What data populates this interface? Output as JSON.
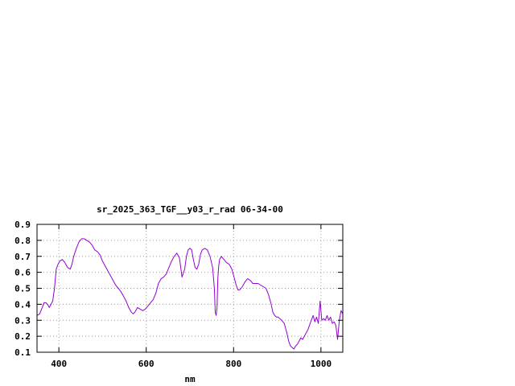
{
  "chart_data": {
    "type": "line",
    "title": "sr_2025_363_TGF__y03_r_rad 06-34-00",
    "xlabel": "nm",
    "ylabel": "",
    "xlim": [
      350,
      1050
    ],
    "ylim": [
      0.1,
      0.9
    ],
    "grid": true,
    "xticks": [
      400,
      600,
      800,
      1000
    ],
    "yticks": [
      0.1,
      0.2,
      0.3,
      0.4,
      0.5,
      0.6,
      0.7,
      0.8,
      0.9
    ],
    "xtick_labels": [
      "400",
      "600",
      "800",
      "1000"
    ],
    "ytick_labels": [
      "0.1",
      "0.2",
      "0.3",
      "0.4",
      "0.5",
      "0.6",
      "0.7",
      "0.8",
      "0.9"
    ],
    "series": [
      {
        "color": "#9400d3",
        "x": [
          350,
          356,
          362,
          366,
          370,
          374,
          378,
          382,
          386,
          390,
          394,
          398,
          402,
          408,
          414,
          420,
          426,
          430,
          434,
          440,
          446,
          452,
          458,
          464,
          470,
          476,
          482,
          488,
          494,
          500,
          506,
          512,
          518,
          524,
          530,
          536,
          542,
          548,
          554,
          560,
          566,
          570,
          574,
          580,
          586,
          592,
          598,
          604,
          610,
          616,
          622,
          628,
          634,
          640,
          646,
          652,
          658,
          664,
          670,
          676,
          682,
          688,
          692,
          696,
          700,
          704,
          708,
          712,
          716,
          720,
          724,
          728,
          734,
          740,
          746,
          752,
          756,
          758,
          760,
          762,
          764,
          766,
          768,
          772,
          778,
          784,
          790,
          796,
          800,
          806,
          810,
          814,
          820,
          826,
          832,
          838,
          844,
          850,
          856,
          862,
          868,
          874,
          880,
          886,
          890,
          894,
          898,
          902,
          906,
          910,
          916,
          922,
          926,
          930,
          934,
          938,
          942,
          946,
          950,
          954,
          958,
          962,
          966,
          970,
          974,
          978,
          982,
          986,
          990,
          994,
          998,
          1002,
          1006,
          1010,
          1014,
          1018,
          1022,
          1026,
          1030,
          1034,
          1038,
          1042,
          1046,
          1050
        ],
        "y": [
          0.33,
          0.34,
          0.38,
          0.41,
          0.41,
          0.4,
          0.38,
          0.4,
          0.42,
          0.5,
          0.62,
          0.65,
          0.67,
          0.68,
          0.66,
          0.63,
          0.62,
          0.65,
          0.7,
          0.75,
          0.79,
          0.81,
          0.81,
          0.8,
          0.79,
          0.77,
          0.74,
          0.73,
          0.71,
          0.67,
          0.64,
          0.61,
          0.58,
          0.55,
          0.52,
          0.5,
          0.48,
          0.45,
          0.42,
          0.38,
          0.35,
          0.34,
          0.35,
          0.38,
          0.37,
          0.36,
          0.37,
          0.39,
          0.41,
          0.43,
          0.47,
          0.53,
          0.56,
          0.57,
          0.59,
          0.63,
          0.67,
          0.7,
          0.72,
          0.69,
          0.57,
          0.62,
          0.7,
          0.74,
          0.75,
          0.74,
          0.68,
          0.63,
          0.62,
          0.65,
          0.71,
          0.74,
          0.75,
          0.74,
          0.7,
          0.63,
          0.5,
          0.35,
          0.33,
          0.38,
          0.56,
          0.64,
          0.68,
          0.7,
          0.68,
          0.66,
          0.65,
          0.62,
          0.58,
          0.52,
          0.49,
          0.49,
          0.51,
          0.54,
          0.56,
          0.55,
          0.53,
          0.53,
          0.53,
          0.52,
          0.51,
          0.5,
          0.46,
          0.4,
          0.35,
          0.33,
          0.32,
          0.32,
          0.31,
          0.3,
          0.28,
          0.22,
          0.17,
          0.14,
          0.13,
          0.12,
          0.14,
          0.15,
          0.17,
          0.19,
          0.18,
          0.2,
          0.22,
          0.24,
          0.27,
          0.3,
          0.33,
          0.29,
          0.32,
          0.28,
          0.42,
          0.3,
          0.31,
          0.3,
          0.33,
          0.3,
          0.32,
          0.28,
          0.29,
          0.27,
          0.18,
          0.3,
          0.36,
          0.34
        ]
      }
    ]
  }
}
